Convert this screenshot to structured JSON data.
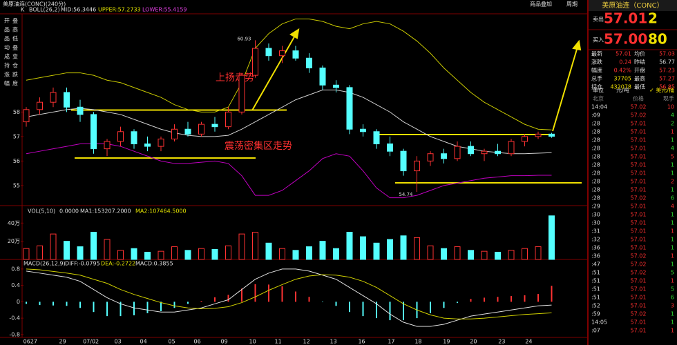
{
  "header": {
    "title": "美原油连(CONC)(240分)",
    "k": "K",
    "indicator": "BOLL(26,2)",
    "mid": "MID:56.3446",
    "upper": "UPPER:57.2733",
    "lower": "LOWER:55.4159",
    "overlay": "商品叠加",
    "period": "周期"
  },
  "toolbar": [
    "开",
    "叠",
    "品",
    "高",
    "品",
    "低",
    "动",
    "叠",
    "成",
    "变",
    "持",
    "仓",
    "涨",
    "跌",
    "幅",
    "度"
  ],
  "annotations": [
    "上扬走势",
    "震荡密集区走势"
  ],
  "x_axis": [
    {
      "value": 0.3,
      "label": "0627"
    },
    {
      "value": 2.7,
      "label": "29"
    },
    {
      "value": 4.8,
      "label": "07/02"
    },
    {
      "value": 6.8,
      "label": "03"
    },
    {
      "value": 8.7,
      "label": "04"
    },
    {
      "value": 10.8,
      "label": "05"
    },
    {
      "value": 12.7,
      "label": "06"
    },
    {
      "value": 14.7,
      "label": "09"
    },
    {
      "value": 16.8,
      "label": "10"
    },
    {
      "value": 18.7,
      "label": "11"
    },
    {
      "value": 20.8,
      "label": "12"
    },
    {
      "value": 22.8,
      "label": "13"
    },
    {
      "value": 24.9,
      "label": "16"
    },
    {
      "value": 27.1,
      "label": "17"
    },
    {
      "value": 29.1,
      "label": "18"
    },
    {
      "value": 31.2,
      "label": "19"
    },
    {
      "value": 33.2,
      "label": "20"
    },
    {
      "value": 35.3,
      "label": "23"
    },
    {
      "value": 37.3,
      "label": "24"
    }
  ],
  "chart_data": [
    {
      "type": "candlestick",
      "ylim": [
        54.18,
        62.01
      ],
      "yticks": [
        55,
        56,
        57,
        58
      ],
      "up_color": "#ff3232",
      "down_color": "#54ffff",
      "candles": [
        {
          "o": 57.6,
          "h": 58.2,
          "l": 57.4,
          "c": 58.1
        },
        {
          "o": 58.1,
          "h": 58.6,
          "l": 57.9,
          "c": 58.4
        },
        {
          "o": 58.4,
          "h": 59.0,
          "l": 58.2,
          "c": 58.8
        },
        {
          "o": 58.8,
          "h": 59.0,
          "l": 58.0,
          "c": 58.2
        },
        {
          "o": 58.2,
          "h": 58.5,
          "l": 57.6,
          "c": 57.9
        },
        {
          "o": 57.9,
          "h": 58.0,
          "l": 56.3,
          "c": 56.5
        },
        {
          "o": 56.5,
          "h": 56.9,
          "l": 56.2,
          "c": 56.8
        },
        {
          "o": 56.8,
          "h": 57.4,
          "l": 56.6,
          "c": 57.2
        },
        {
          "o": 57.2,
          "h": 57.3,
          "l": 56.5,
          "c": 56.7
        },
        {
          "o": 56.7,
          "h": 57.0,
          "l": 56.4,
          "c": 56.6
        },
        {
          "o": 56.6,
          "h": 57.0,
          "l": 56.4,
          "c": 56.9
        },
        {
          "o": 56.9,
          "h": 57.5,
          "l": 56.8,
          "c": 57.3
        },
        {
          "o": 57.3,
          "h": 57.6,
          "l": 57.0,
          "c": 57.1
        },
        {
          "o": 57.1,
          "h": 57.6,
          "l": 57.0,
          "c": 57.5
        },
        {
          "o": 57.5,
          "h": 57.8,
          "l": 57.2,
          "c": 57.4
        },
        {
          "o": 57.4,
          "h": 58.2,
          "l": 57.3,
          "c": 58.0
        },
        {
          "o": 58.0,
          "h": 59.6,
          "l": 57.9,
          "c": 59.5
        },
        {
          "o": 59.5,
          "h": 60.93,
          "l": 59.4,
          "c": 60.6
        },
        {
          "o": 60.6,
          "h": 60.8,
          "l": 60.1,
          "c": 60.3
        },
        {
          "o": 60.3,
          "h": 60.7,
          "l": 60.0,
          "c": 60.5
        },
        {
          "o": 60.5,
          "h": 60.7,
          "l": 60.1,
          "c": 60.2
        },
        {
          "o": 60.2,
          "h": 60.4,
          "l": 59.6,
          "c": 59.8
        },
        {
          "o": 59.8,
          "h": 59.9,
          "l": 58.9,
          "c": 59.1
        },
        {
          "o": 59.1,
          "h": 59.3,
          "l": 58.8,
          "c": 59.0
        },
        {
          "o": 59.0,
          "h": 59.1,
          "l": 57.1,
          "c": 57.3
        },
        {
          "o": 57.3,
          "h": 57.5,
          "l": 57.0,
          "c": 57.2
        },
        {
          "o": 57.2,
          "h": 57.3,
          "l": 56.5,
          "c": 56.7
        },
        {
          "o": 56.7,
          "h": 57.0,
          "l": 56.2,
          "c": 56.4
        },
        {
          "o": 56.4,
          "h": 56.5,
          "l": 55.4,
          "c": 55.6
        },
        {
          "o": 55.6,
          "h": 56.2,
          "l": 54.74,
          "c": 56.0
        },
        {
          "o": 56.0,
          "h": 56.4,
          "l": 55.8,
          "c": 56.3
        },
        {
          "o": 56.3,
          "h": 56.5,
          "l": 55.9,
          "c": 56.1
        },
        {
          "o": 56.1,
          "h": 56.8,
          "l": 56.0,
          "c": 56.6
        },
        {
          "o": 56.6,
          "h": 56.8,
          "l": 56.2,
          "c": 56.3
        },
        {
          "o": 56.3,
          "h": 56.5,
          "l": 56.0,
          "c": 56.4
        },
        {
          "o": 56.4,
          "h": 56.7,
          "l": 56.2,
          "c": 56.3
        },
        {
          "o": 56.3,
          "h": 56.9,
          "l": 56.2,
          "c": 56.8
        },
        {
          "o": 56.8,
          "h": 57.1,
          "l": 56.6,
          "c": 57.0
        },
        {
          "o": 57.0,
          "h": 57.2,
          "l": 56.9,
          "c": 57.1
        },
        {
          "o": 57.1,
          "h": 57.15,
          "l": 56.95,
          "c": 57.01
        }
      ],
      "high_index": 17,
      "low_index": 29,
      "upper": {
        "color": "#c8c800",
        "values": [
          59.3,
          59.4,
          59.5,
          59.6,
          59.6,
          59.5,
          59.3,
          59.2,
          59.0,
          58.8,
          58.6,
          58.3,
          58.1,
          58.0,
          58.0,
          58.2,
          59.2,
          60.6,
          61.2,
          61.6,
          61.8,
          61.8,
          61.7,
          61.5,
          61.4,
          61.6,
          61.7,
          61.6,
          61.3,
          60.9,
          60.4,
          59.8,
          59.3,
          58.8,
          58.4,
          58.1,
          57.8,
          57.5,
          57.3,
          57.27
        ]
      },
      "mid": {
        "color": "#d0d0d0",
        "values": [
          57.8,
          57.9,
          58.0,
          58.1,
          58.15,
          58.1,
          58.0,
          57.9,
          57.7,
          57.5,
          57.3,
          57.15,
          57.05,
          57.0,
          57.0,
          57.05,
          57.3,
          57.6,
          57.9,
          58.2,
          58.5,
          58.7,
          58.9,
          58.9,
          58.8,
          58.6,
          58.3,
          58.0,
          57.6,
          57.3,
          57.0,
          56.8,
          56.6,
          56.5,
          56.4,
          56.35,
          56.3,
          56.3,
          56.32,
          56.34
        ]
      },
      "lower": {
        "color": "#c000c0",
        "values": [
          56.3,
          56.4,
          56.5,
          56.6,
          56.7,
          56.7,
          56.7,
          56.6,
          56.4,
          56.2,
          56.0,
          55.9,
          55.9,
          55.95,
          56.0,
          55.9,
          55.4,
          54.6,
          54.6,
          54.8,
          55.2,
          55.6,
          56.1,
          56.3,
          56.2,
          55.6,
          54.9,
          54.5,
          54.5,
          54.6,
          54.8,
          55.0,
          55.1,
          55.2,
          55.3,
          55.35,
          55.4,
          55.4,
          55.42,
          55.42
        ]
      }
    },
    {
      "type": "volume",
      "header": [
        "VOL(5,10)",
        "0.0000",
        "MA1:153207.2000",
        "MA2:107464.5000"
      ],
      "ylim": [
        0,
        57.7
      ],
      "yticks": [
        {
          "value": 20,
          "label": "20万"
        },
        {
          "value": 40,
          "label": "40万"
        }
      ],
      "values": [
        12,
        15,
        28,
        20,
        14,
        30,
        22,
        10,
        12,
        8,
        9,
        14,
        10,
        12,
        11,
        15,
        28,
        30,
        18,
        12,
        10,
        14,
        20,
        12,
        30,
        25,
        18,
        22,
        26,
        24,
        15,
        12,
        14,
        10,
        9,
        8,
        10,
        12,
        14,
        48
      ]
    },
    {
      "type": "macd",
      "header": [
        "MACD(26,12,9)",
        "DIFF:-0.0795",
        "DEA:-0.2722",
        "MACD:0.3855"
      ],
      "ylim": [
        -0.87,
        1.0
      ],
      "yticks": [
        -0.8,
        -0.4,
        0,
        0.4,
        0.8
      ],
      "diff": {
        "color": "#e0e0e0",
        "values": [
          0.75,
          0.7,
          0.65,
          0.6,
          0.5,
          0.3,
          0.1,
          -0.05,
          -0.15,
          -0.2,
          -0.25,
          -0.25,
          -0.2,
          -0.15,
          -0.05,
          0.05,
          0.3,
          0.55,
          0.7,
          0.8,
          0.8,
          0.75,
          0.65,
          0.55,
          0.35,
          0.15,
          -0.05,
          -0.3,
          -0.5,
          -0.6,
          -0.6,
          -0.55,
          -0.45,
          -0.35,
          -0.3,
          -0.25,
          -0.2,
          -0.15,
          -0.1,
          -0.08
        ]
      },
      "dea": {
        "color": "#d0d000",
        "values": [
          0.8,
          0.78,
          0.74,
          0.7,
          0.65,
          0.55,
          0.45,
          0.3,
          0.18,
          0.08,
          -0.02,
          -0.1,
          -0.15,
          -0.17,
          -0.16,
          -0.12,
          -0.02,
          0.12,
          0.28,
          0.42,
          0.55,
          0.63,
          0.66,
          0.65,
          0.6,
          0.5,
          0.35,
          0.15,
          -0.05,
          -0.2,
          -0.32,
          -0.4,
          -0.42,
          -0.42,
          -0.4,
          -0.37,
          -0.34,
          -0.31,
          -0.29,
          -0.27
        ]
      },
      "hist": [
        -0.05,
        -0.08,
        -0.09,
        -0.1,
        -0.15,
        -0.25,
        -0.35,
        -0.35,
        -0.33,
        -0.28,
        -0.23,
        -0.15,
        -0.05,
        0.02,
        0.11,
        0.17,
        0.32,
        0.43,
        0.42,
        0.38,
        0.25,
        0.12,
        -0.01,
        -0.1,
        -0.25,
        -0.35,
        -0.4,
        -0.45,
        -0.45,
        -0.4,
        -0.28,
        -0.15,
        -0.03,
        0.07,
        0.1,
        0.12,
        0.14,
        0.16,
        0.19,
        0.39
      ]
    }
  ],
  "quote": {
    "name": "美原油连（CONC）",
    "sell_label": "卖出",
    "sell_price": "57.01",
    "sell_qty": "2",
    "buy_label": "买入",
    "buy_price": "57.00",
    "buy_qty": "80",
    "stats": [
      [
        "最新",
        "57.01",
        "均价",
        "57.03"
      ],
      [
        "涨跌",
        "0.24",
        "昨结",
        "56.77"
      ],
      [
        "幅度",
        "0.42%",
        "开盘",
        "57.23"
      ],
      [
        "总手",
        "37705",
        "最高",
        "57.27"
      ],
      [
        "持仓",
        "432078",
        "最低",
        "56.85"
      ]
    ],
    "unit": [
      "单位",
      "元/吨",
      "✓ 美元/桶"
    ],
    "columns": [
      "北京",
      "价格",
      "现手"
    ],
    "ticks": [
      [
        "14:04",
        "57.02",
        "10"
      ],
      [
        ":09",
        "57.02",
        "4"
      ],
      [
        ":28",
        "57.01",
        "2"
      ],
      [
        ":28",
        "57.01",
        "1"
      ],
      [
        ":28",
        "57.01",
        "1"
      ],
      [
        ":28",
        "57.01",
        "4"
      ],
      [
        ":28",
        "57.01",
        "5"
      ],
      [
        ":28",
        "57.01",
        "1"
      ],
      [
        ":28",
        "57.01",
        "1"
      ],
      [
        ":28",
        "57.01",
        "2"
      ],
      [
        ":28",
        "57.01",
        "1"
      ],
      [
        ":28",
        "57.02",
        "6"
      ],
      [
        ":29",
        "57.01",
        "4"
      ],
      [
        ":30",
        "57.01",
        "1"
      ],
      [
        ":30",
        "57.01",
        "1"
      ],
      [
        ":31",
        "57.01",
        "1"
      ],
      [
        ":32",
        "57.01",
        "1"
      ],
      [
        ":36",
        "57.01",
        "1"
      ],
      [
        ":36",
        "57.02",
        "1"
      ],
      [
        ":47",
        "57.02",
        "1"
      ],
      [
        ":51",
        "57.02",
        "5"
      ],
      [
        ":51",
        "57.01",
        "1"
      ],
      [
        ":51",
        "57.01",
        "5"
      ],
      [
        ":51",
        "57.01",
        "6"
      ],
      [
        ":52",
        "57.01",
        "3"
      ],
      [
        ":59",
        "57.02",
        "1"
      ],
      [
        "14:05",
        "57.01",
        "1"
      ],
      [
        ":07",
        "57.01",
        "1"
      ]
    ]
  }
}
